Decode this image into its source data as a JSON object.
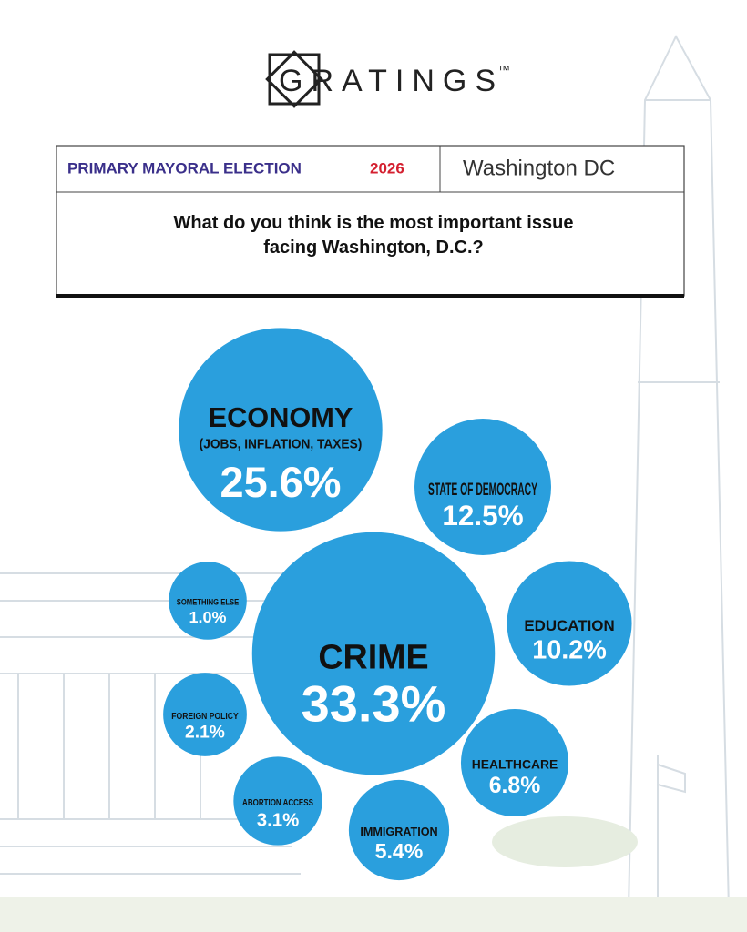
{
  "header": {
    "brand": "GRATINGS",
    "trademark": "™",
    "election": "PRIMARY MAYORAL ELECTION",
    "year": "2026",
    "location": "Washington DC"
  },
  "chart_data": {
    "type": "bubble",
    "title": "What do you think is the most important issue facing Washington, D.C.?",
    "categories": [
      "ECONOMY",
      "STATE OF DEMOCRACY",
      "SOMETHING ELSE",
      "CRIME",
      "EDUCATION",
      "FOREIGN POLICY",
      "HEALTHCARE",
      "ABORTION ACCESS",
      "IMMIGRATION"
    ],
    "annotations": [
      "(JOBS, INFLATION, TAXES)"
    ],
    "values": [
      25.6,
      12.5,
      1.0,
      33.3,
      10.2,
      2.1,
      6.8,
      3.1,
      5.4
    ],
    "value_labels": [
      "25.6%",
      "12.5%",
      "1.0%",
      "33.3%",
      "10.2%",
      "2.1%",
      "6.8%",
      "3.1%",
      "5.4%"
    ],
    "color": "#2a9fdd"
  }
}
